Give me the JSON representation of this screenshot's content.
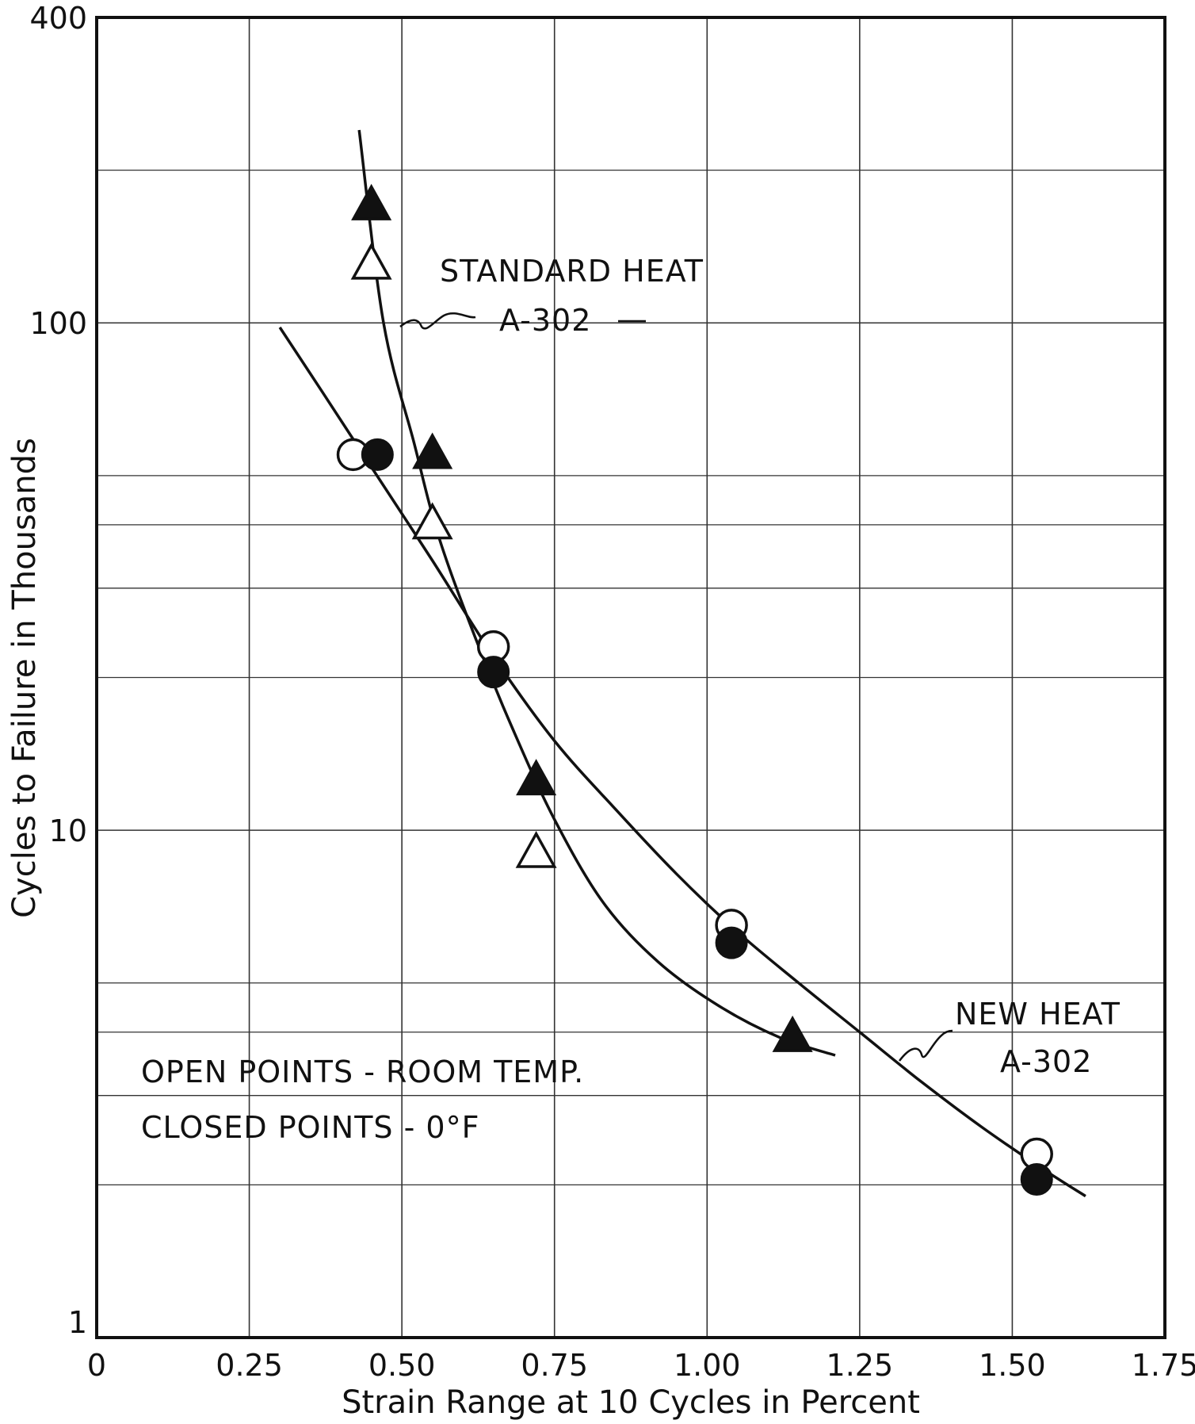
{
  "chart_data": {
    "type": "scatter",
    "title": "",
    "xlabel": "Strain Range at 10 Cycles in Percent",
    "ylabel": "Cycles to Failure in Thousands",
    "xlim": [
      0,
      1.75
    ],
    "ylim": [
      1,
      400
    ],
    "y_scale": "log",
    "grid": true,
    "x_ticks": [
      {
        "value": 0,
        "label": "0"
      },
      {
        "value": 0.25,
        "label": "0.25"
      },
      {
        "value": 0.5,
        "label": "0.50"
      },
      {
        "value": 0.75,
        "label": "0.75"
      },
      {
        "value": 1.0,
        "label": "1.00"
      },
      {
        "value": 1.25,
        "label": "1.25"
      },
      {
        "value": 1.5,
        "label": "1.50"
      },
      {
        "value": 1.75,
        "label": "1.75"
      }
    ],
    "y_ticks": [
      {
        "value": 1,
        "label": "1"
      },
      {
        "value": 10,
        "label": "10"
      },
      {
        "value": 100,
        "label": "100"
      },
      {
        "value": 400,
        "label": "400"
      }
    ],
    "y_minor_gridlines": [
      2,
      3,
      4,
      5,
      20,
      30,
      40,
      50,
      200
    ],
    "series": [
      {
        "name": "STANDARD HEAT A-302",
        "label_lines": [
          "STANDARD HEAT",
          "A-302"
        ],
        "marker": "triangle",
        "open_points": [
          {
            "x": 0.45,
            "y": 130
          },
          {
            "x": 0.55,
            "y": 40
          },
          {
            "x": 0.72,
            "y": 9
          }
        ],
        "closed_points": [
          {
            "x": 0.45,
            "y": 170
          },
          {
            "x": 0.55,
            "y": 55
          },
          {
            "x": 0.72,
            "y": 12.5
          },
          {
            "x": 1.14,
            "y": 3.9
          }
        ],
        "curve": [
          {
            "x": 0.43,
            "y": 240
          },
          {
            "x": 0.47,
            "y": 100
          },
          {
            "x": 0.52,
            "y": 58
          },
          {
            "x": 0.56,
            "y": 38
          },
          {
            "x": 0.62,
            "y": 24
          },
          {
            "x": 0.68,
            "y": 16
          },
          {
            "x": 0.75,
            "y": 10.5
          },
          {
            "x": 0.83,
            "y": 7.2
          },
          {
            "x": 0.92,
            "y": 5.5
          },
          {
            "x": 1.02,
            "y": 4.5
          },
          {
            "x": 1.12,
            "y": 3.9
          },
          {
            "x": 1.21,
            "y": 3.6
          }
        ]
      },
      {
        "name": "NEW HEAT A-302",
        "label_lines": [
          "NEW HEAT",
          "A-302"
        ],
        "marker": "circle",
        "open_points": [
          {
            "x": 0.42,
            "y": 55
          },
          {
            "x": 0.65,
            "y": 23
          },
          {
            "x": 1.04,
            "y": 6.5
          },
          {
            "x": 1.54,
            "y": 2.3
          }
        ],
        "closed_points": [
          {
            "x": 0.46,
            "y": 55
          },
          {
            "x": 0.65,
            "y": 20.5
          },
          {
            "x": 1.04,
            "y": 6.0
          },
          {
            "x": 1.54,
            "y": 2.05
          }
        ],
        "curve": [
          {
            "x": 0.3,
            "y": 98
          },
          {
            "x": 0.37,
            "y": 73
          },
          {
            "x": 0.45,
            "y": 52
          },
          {
            "x": 0.55,
            "y": 34
          },
          {
            "x": 0.65,
            "y": 22
          },
          {
            "x": 0.75,
            "y": 15
          },
          {
            "x": 0.85,
            "y": 11
          },
          {
            "x": 0.95,
            "y": 8.2
          },
          {
            "x": 1.05,
            "y": 6.3
          },
          {
            "x": 1.15,
            "y": 5.0
          },
          {
            "x": 1.25,
            "y": 4.0
          },
          {
            "x": 1.35,
            "y": 3.2
          },
          {
            "x": 1.45,
            "y": 2.6
          },
          {
            "x": 1.55,
            "y": 2.15
          },
          {
            "x": 1.62,
            "y": 1.9
          }
        ]
      }
    ],
    "annotations": [
      "OPEN POINTS - ROOM TEMP.",
      "CLOSED POINTS - 0°F"
    ]
  }
}
